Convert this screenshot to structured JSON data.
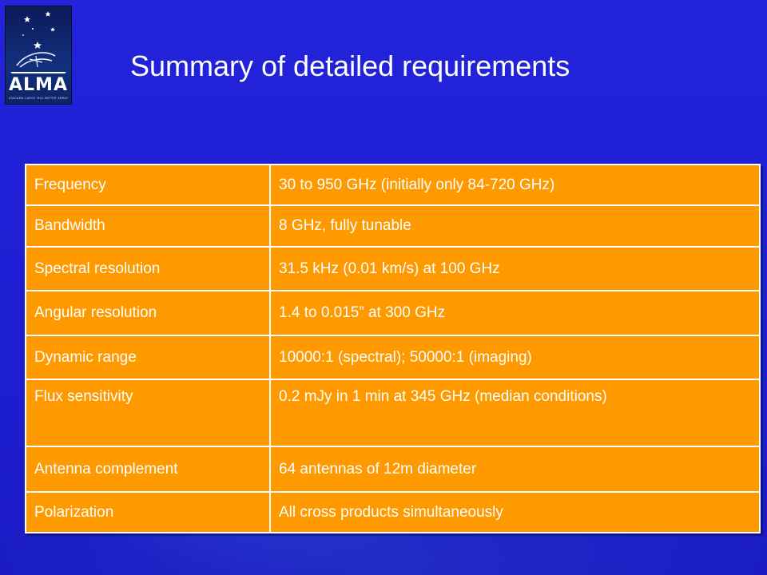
{
  "logo": {
    "name": "ALMA",
    "subtitle": "ATACAMA LARGE MILLIMETER ARRAY"
  },
  "title": "Summary of detailed requirements",
  "colors": {
    "background": "#1f1fd6",
    "table_fill": "#ff9900",
    "text": "#ffffff"
  },
  "requirements": [
    {
      "parameter": "Frequency",
      "value": "30 to 950 GHz (initially only 84-720 GHz)"
    },
    {
      "parameter": "Bandwidth",
      "value": "8 GHz, fully tunable"
    },
    {
      "parameter": "Spectral resolution",
      "value": "31.5 kHz (0.01 km/s) at 100 GHz"
    },
    {
      "parameter": "Angular resolution",
      "value": "1.4 to 0.015” at 300 GHz"
    },
    {
      "parameter": "Dynamic range",
      "value": "10000:1 (spectral); 50000:1 (imaging)"
    },
    {
      "parameter": "Flux sensitivity",
      "value": "0.2 mJy in 1 min at 345 GHz (median conditions)"
    },
    {
      "parameter": "Antenna complement",
      "value": "64 antennas of 12m diameter"
    },
    {
      "parameter": "Polarization",
      "value": "All cross products simultaneously"
    }
  ]
}
